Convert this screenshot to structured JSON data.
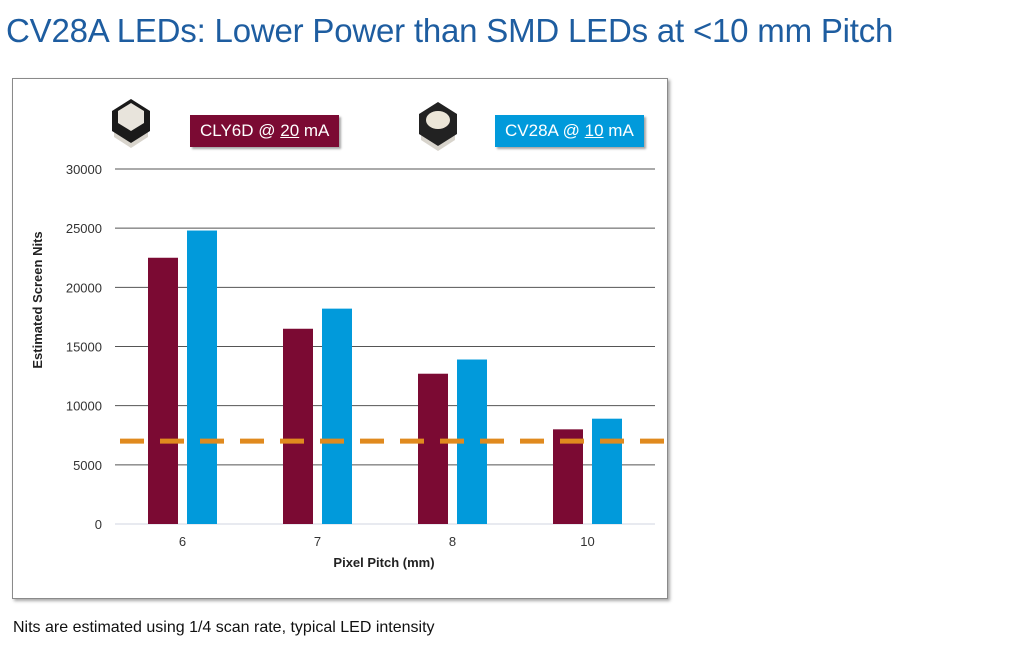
{
  "title": "CV28A LEDs: Lower Power than SMD LEDs at <10 mm Pitch",
  "footnote": "Nits are estimated using 1/4 scan rate, typical LED intensity",
  "legend": [
    {
      "icon": "led-package-flat-icon",
      "prefix": "CLY6D @ ",
      "current": "20",
      "suffix": " mA",
      "color": "#7b0a33"
    },
    {
      "icon": "led-package-dome-icon",
      "prefix": "CV28A @ ",
      "current": "10",
      "suffix": " mA",
      "color": "#019adb"
    }
  ],
  "chart_data": {
    "type": "bar",
    "title": "",
    "xlabel": "Pixel Pitch (mm)",
    "ylabel": "Estimated Screen Nits",
    "categories": [
      "6",
      "7",
      "8",
      "10"
    ],
    "series": [
      {
        "name": "CLY6D @ 20 mA",
        "color": "#7b0a33",
        "values": [
          22500,
          16500,
          12700,
          8000
        ]
      },
      {
        "name": "CV28A @ 10 mA",
        "color": "#019adb",
        "values": [
          24800,
          18200,
          13900,
          8900
        ]
      }
    ],
    "ylim": [
      0,
      30000
    ],
    "yticks": [
      0,
      5000,
      10000,
      15000,
      20000,
      25000,
      30000
    ],
    "grid": true,
    "reference_line": {
      "value": 7000,
      "style": "dashed",
      "color": "#e08a1e"
    },
    "legend_position": "top"
  }
}
